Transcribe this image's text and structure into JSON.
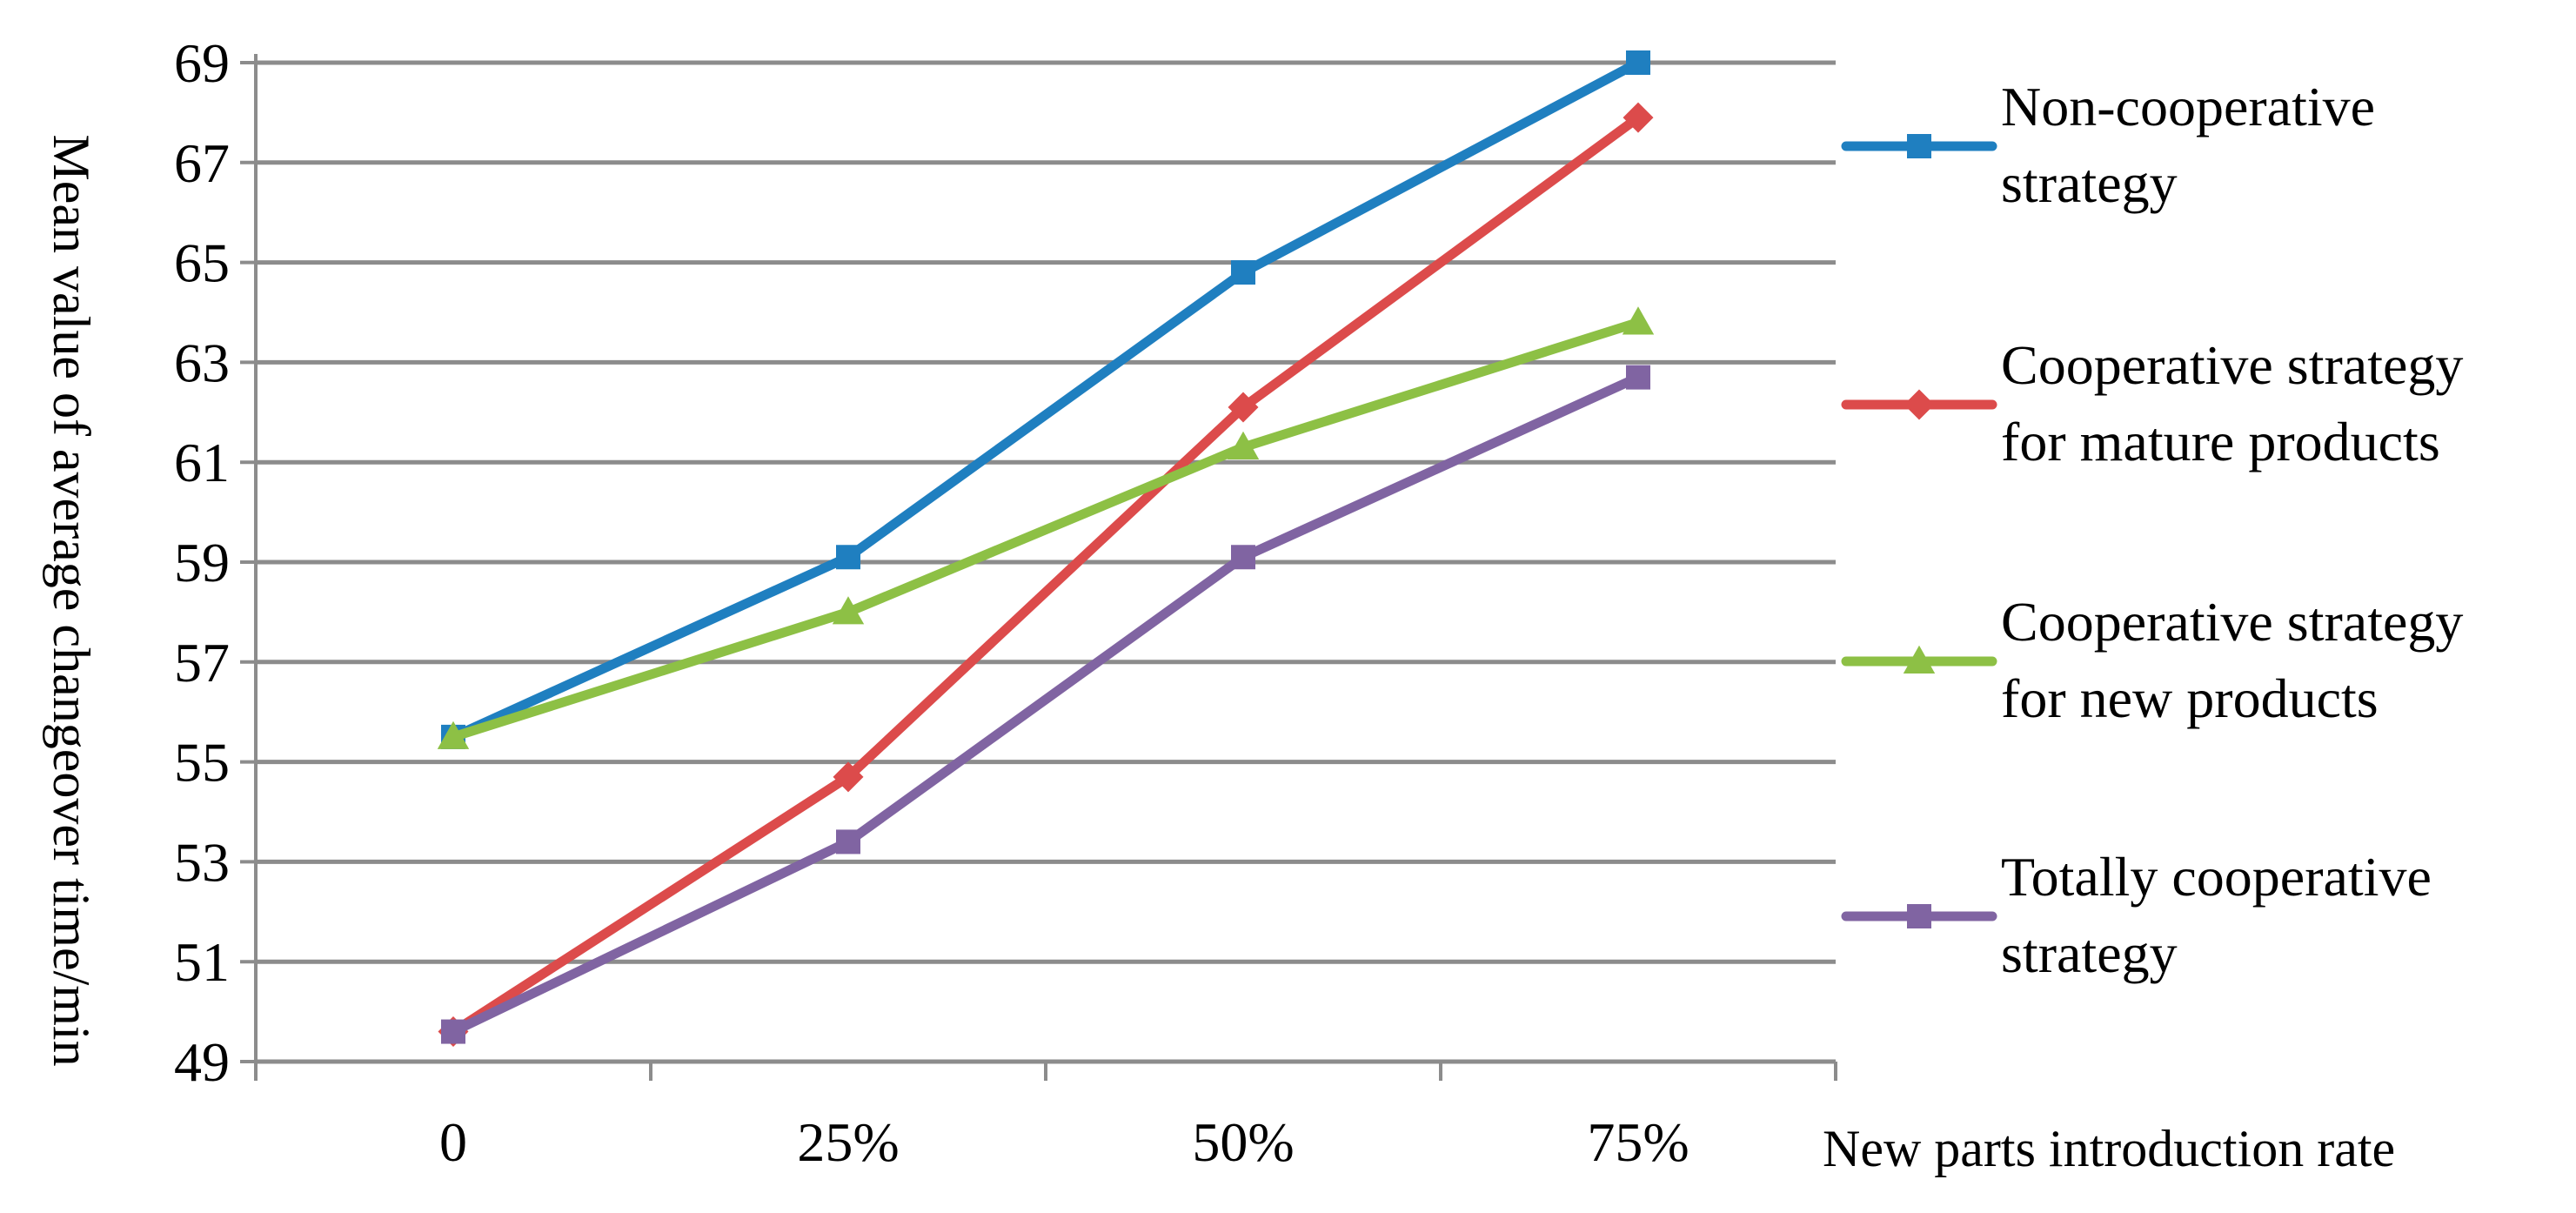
{
  "chart_data": {
    "type": "line",
    "title": "",
    "xlabel": "New parts introduction rate",
    "ylabel": "Mean value of average changeover time/min",
    "categories": [
      "0",
      "25%",
      "50%",
      "75%"
    ],
    "ylim": [
      49,
      69
    ],
    "yticks": [
      "49",
      "51",
      "53",
      "55",
      "57",
      "59",
      "61",
      "63",
      "65",
      "67",
      "69"
    ],
    "grid": "horizontal",
    "legend_position": "right",
    "series": [
      {
        "name_lines": [
          "Non-cooperative",
          "strategy"
        ],
        "color": "#1F7FC0",
        "marker": "square",
        "values": [
          55.5,
          59.1,
          64.8,
          69.0
        ]
      },
      {
        "name_lines": [
          "Cooperative strategy",
          "for mature products"
        ],
        "color": "#DC4B4B",
        "marker": "diamond",
        "values": [
          49.6,
          54.7,
          62.1,
          67.9
        ]
      },
      {
        "name_lines": [
          "Cooperative strategy",
          "for new products"
        ],
        "color": "#8DC045",
        "marker": "triangle",
        "values": [
          55.5,
          58.0,
          61.3,
          63.8
        ]
      },
      {
        "name_lines": [
          "Totally cooperative",
          "strategy"
        ],
        "color": "#8064A2",
        "marker": "square",
        "values": [
          49.6,
          53.4,
          59.1,
          62.7
        ]
      }
    ]
  }
}
